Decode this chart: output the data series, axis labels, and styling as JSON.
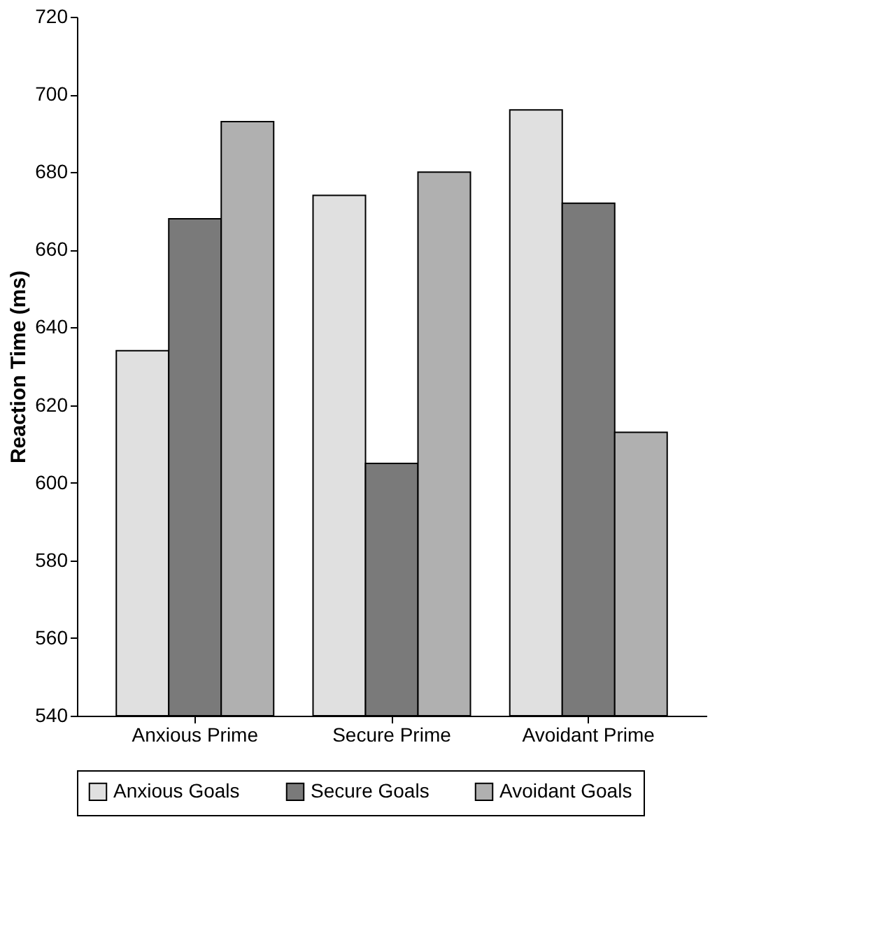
{
  "chart_data": {
    "type": "bar",
    "ylabel": "Reaction Time (ms)",
    "categories": [
      "Anxious Prime",
      "Secure Prime",
      "Avoidant Prime"
    ],
    "series": [
      {
        "name": "Anxious Goals",
        "color": "#e0e0e0",
        "values": [
          634,
          674,
          696
        ]
      },
      {
        "name": "Secure Goals",
        "color": "#7a7a7a",
        "values": [
          668,
          605,
          672
        ]
      },
      {
        "name": "Avoidant Goals",
        "color": "#b0b0b0",
        "values": [
          693,
          680,
          613
        ]
      }
    ],
    "ylim": [
      540,
      720
    ],
    "yticks": [
      540,
      560,
      580,
      600,
      620,
      640,
      660,
      680,
      700,
      720
    ],
    "grid": false,
    "legend": "bottom"
  }
}
